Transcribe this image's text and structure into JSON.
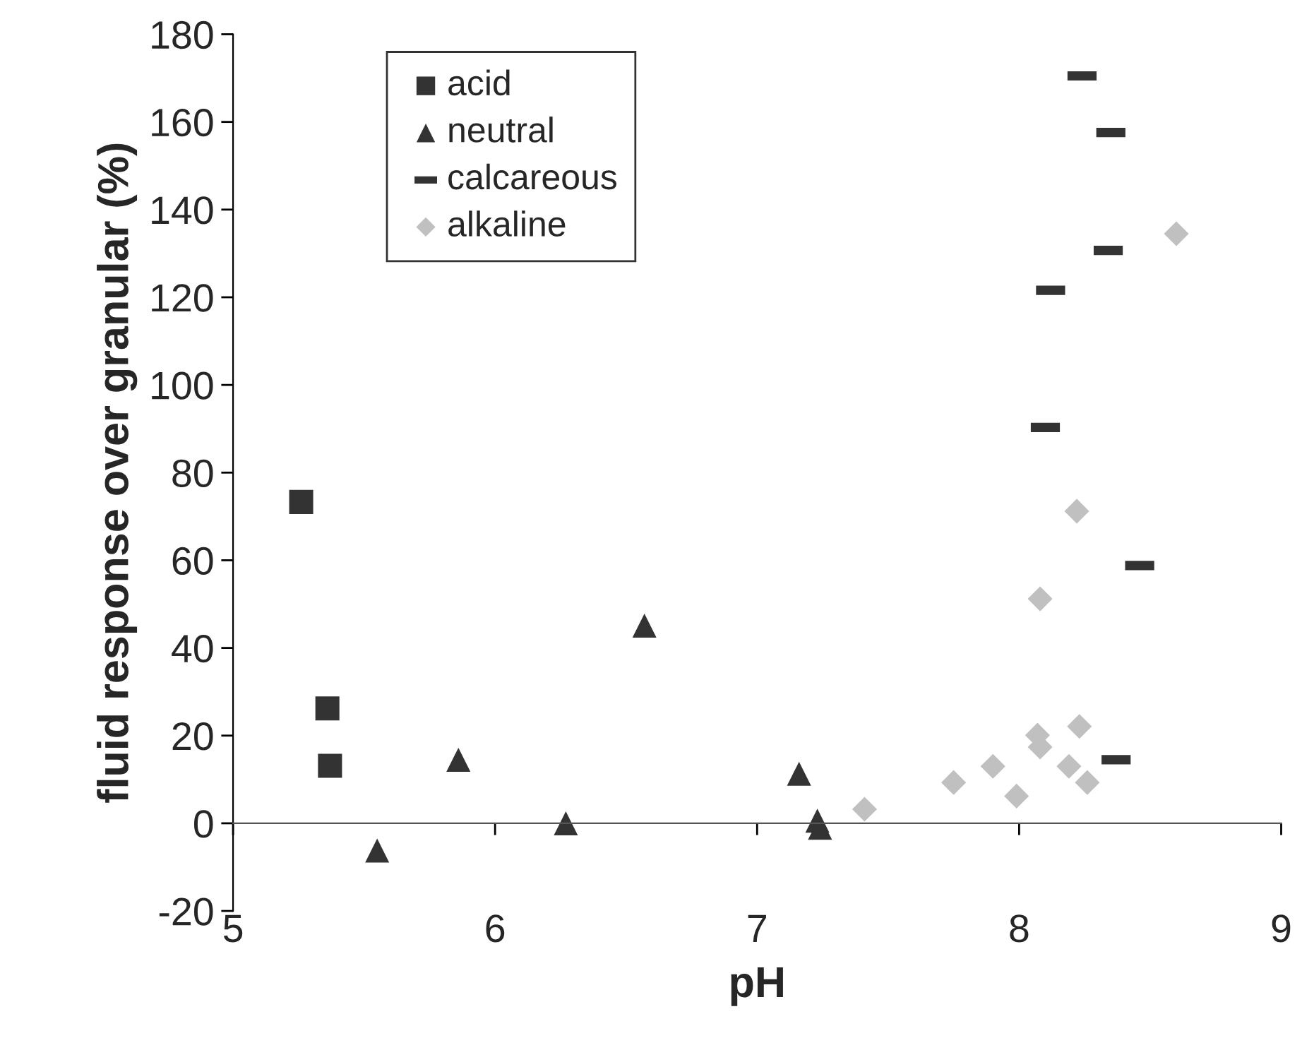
{
  "chart_data": {
    "type": "scatter",
    "xlabel": "pH",
    "ylabel": "fluid response over granular (%)",
    "xlim": [
      5,
      9
    ],
    "xticks": [
      5,
      6,
      7,
      8,
      9
    ],
    "ylim": [
      -20,
      180
    ],
    "yticks": [
      -20,
      0,
      20,
      40,
      60,
      80,
      100,
      120,
      140,
      160,
      180
    ],
    "grid": false,
    "legend": "top left",
    "series": [
      {
        "name": "acid",
        "color": "#333333",
        "marker": "square",
        "x": [
          5.26,
          5.36,
          5.37
        ],
        "values": [
          73.3,
          26.2,
          13.1
        ]
      },
      {
        "name": "neutral",
        "color": "#333333",
        "marker": "triangle",
        "x": [
          5.55,
          5.86,
          6.27,
          6.57,
          7.16,
          7.23,
          7.24
        ],
        "values": [
          -6.2,
          14.5,
          0,
          45.1,
          11.3,
          0.6,
          -1
        ]
      },
      {
        "name": "calcareous",
        "color": "#333333",
        "x": [
          8.24,
          8.35,
          8.34,
          8.12,
          8.1,
          8.46,
          8.37
        ],
        "values": [
          170.5,
          157.6,
          130.7,
          121.6,
          90.3,
          58.8,
          14.5
        ]
      },
      {
        "name": "alkaline",
        "color": "#c0c0c0",
        "marker": "diamond",
        "x": [
          8.6,
          8.22,
          8.08,
          8.23,
          8.07,
          8.08,
          7.9,
          8.19,
          7.75,
          8.26,
          7.99,
          7.41
        ],
        "values": [
          134.5,
          71.2,
          51.2,
          22.1,
          20.1,
          17.4,
          13.0,
          13.0,
          9.3,
          9.3,
          6.2,
          3.2
        ]
      }
    ]
  }
}
